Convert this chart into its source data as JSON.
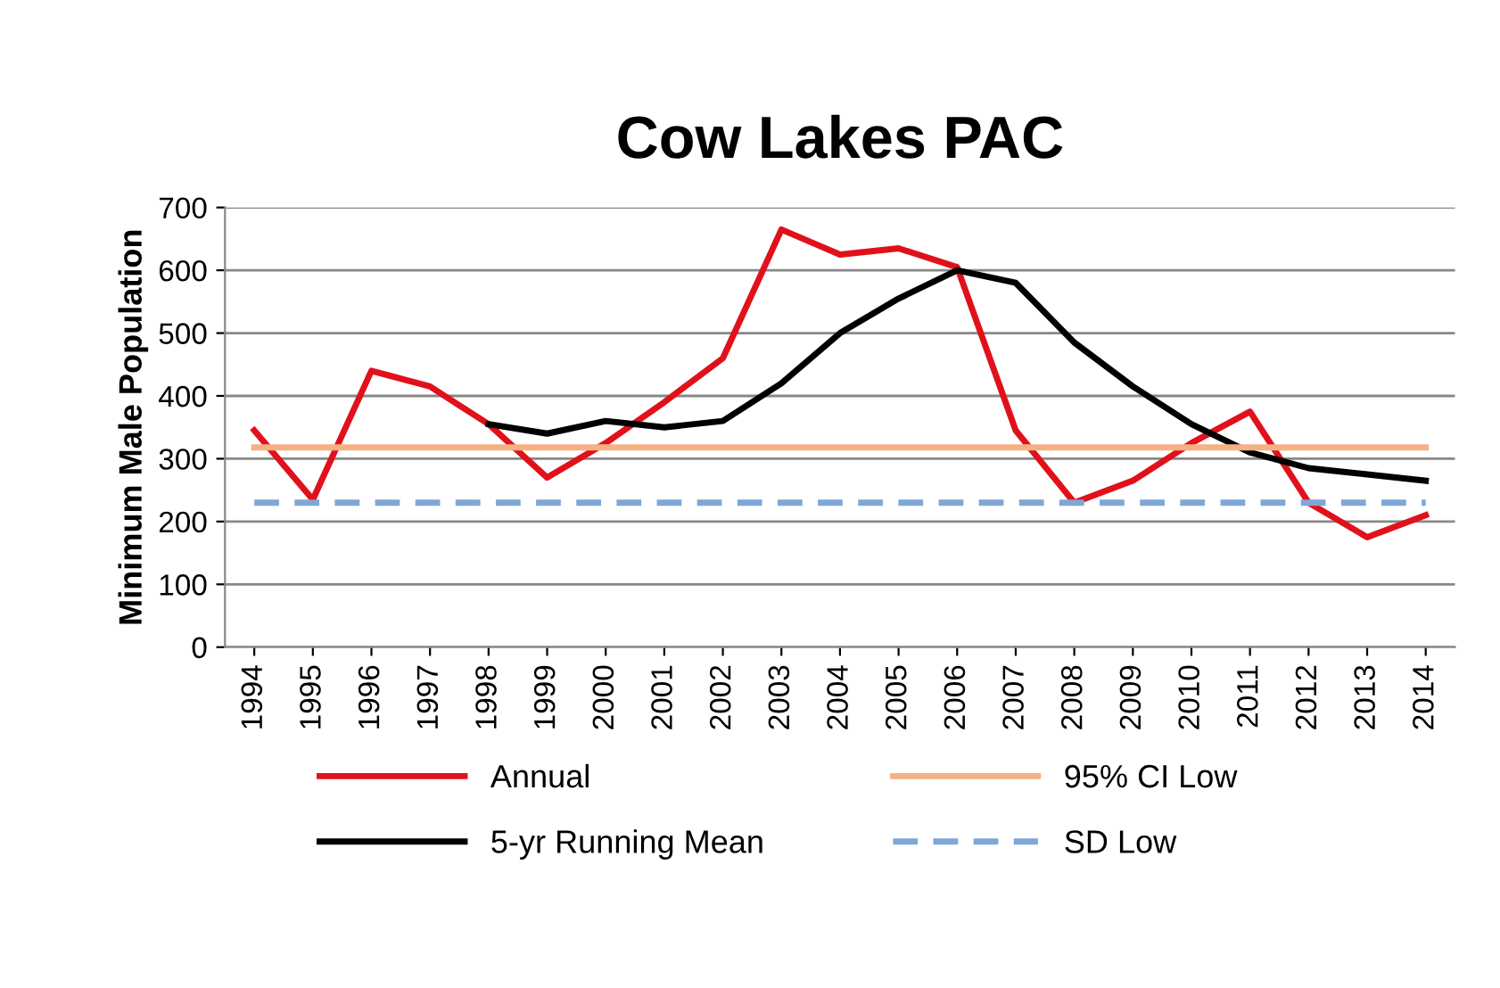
{
  "chart_data": {
    "type": "line",
    "title": "Cow Lakes PAC",
    "ylabel": "Minimum Male Population",
    "categories": [
      "1994",
      "1995",
      "1996",
      "1997",
      "1998",
      "1999",
      "2000",
      "2001",
      "2002",
      "2003",
      "2004",
      "2005",
      "2006",
      "2007",
      "2008",
      "2009",
      "2010",
      "2011",
      "2012",
      "2013",
      "2014"
    ],
    "series": [
      {
        "name": "Annual",
        "color": "#e0111b",
        "values": [
          345,
          235,
          440,
          415,
          355,
          270,
          325,
          390,
          460,
          665,
          625,
          635,
          605,
          345,
          230,
          265,
          325,
          375,
          230,
          175,
          210
        ]
      },
      {
        "name": "5-yr Running Mean",
        "color": "#000000",
        "values": [
          null,
          null,
          null,
          null,
          355,
          340,
          360,
          350,
          360,
          420,
          500,
          555,
          600,
          580,
          485,
          415,
          355,
          310,
          285,
          275,
          265
        ]
      },
      {
        "name": "95% CI Low",
        "color": "#f4b183",
        "values": [
          318,
          318,
          318,
          318,
          318,
          318,
          318,
          318,
          318,
          318,
          318,
          318,
          318,
          318,
          318,
          318,
          318,
          318,
          318,
          318,
          318
        ]
      },
      {
        "name": "SD Low",
        "color": "#7fa7d6",
        "line_style": "dashed",
        "values": [
          230,
          230,
          230,
          230,
          230,
          230,
          230,
          230,
          230,
          230,
          230,
          230,
          230,
          230,
          230,
          230,
          230,
          230,
          230,
          230,
          230
        ]
      }
    ],
    "ylim": [
      0,
      700
    ],
    "yticks": [
      0,
      100,
      200,
      300,
      400,
      500,
      600,
      700
    ],
    "grid": "y",
    "legend": "bottom",
    "marker": "none"
  }
}
